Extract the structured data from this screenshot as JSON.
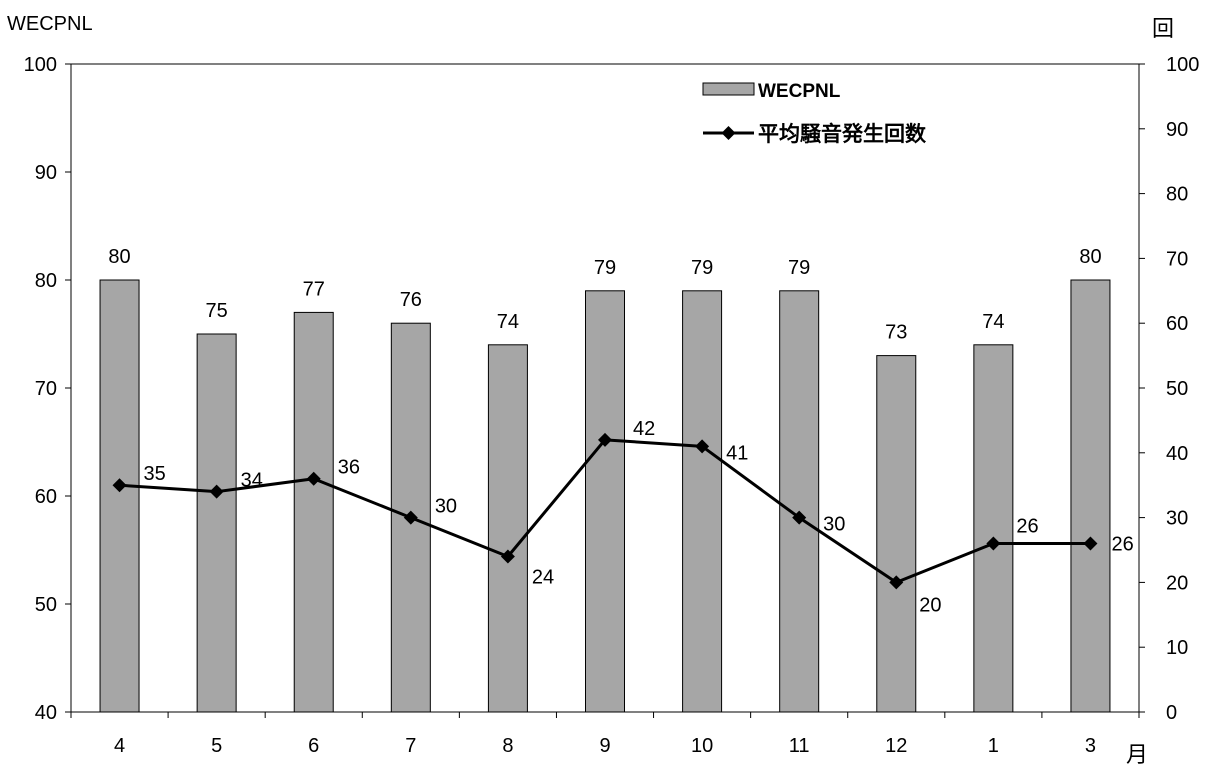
{
  "chart_data": {
    "type": "bar",
    "categories": [
      "4",
      "5",
      "6",
      "7",
      "8",
      "9",
      "10",
      "11",
      "12",
      "1",
      "3"
    ],
    "x_unit_label": "月",
    "series": [
      {
        "name": "WECPNL",
        "type": "bar",
        "axis": "left",
        "values": [
          80,
          75,
          77,
          76,
          74,
          79,
          79,
          79,
          73,
          74,
          80
        ],
        "color": "#a6a6a6"
      },
      {
        "name": "平均騒音発生回数",
        "type": "line",
        "axis": "right",
        "values": [
          35,
          34,
          36,
          30,
          24,
          42,
          41,
          30,
          20,
          26,
          26
        ],
        "color": "#000000",
        "marker": "diamond"
      }
    ],
    "left_axis": {
      "label": "WECPNL",
      "ylim": [
        40,
        100
      ],
      "ticks": [
        40,
        50,
        60,
        70,
        80,
        90,
        100
      ]
    },
    "right_axis": {
      "label": "回",
      "ylim": [
        0,
        100
      ],
      "ticks": [
        0,
        10,
        20,
        30,
        40,
        50,
        60,
        70,
        80,
        90,
        100
      ]
    },
    "legend_position": "top-right",
    "grid": false
  }
}
